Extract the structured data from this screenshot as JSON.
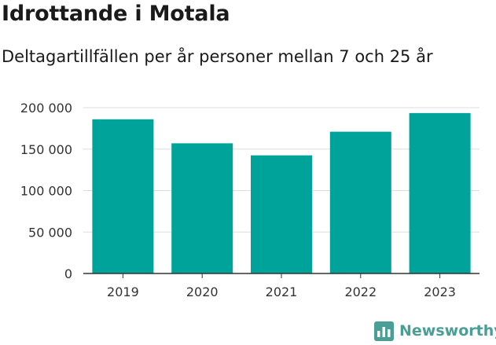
{
  "header": {
    "title": "Idrottande i Motala",
    "subtitle": "Deltagartillfällen per år personer mellan 7 och 25 år"
  },
  "brand": {
    "name": "Newsworthy"
  },
  "chart_data": {
    "type": "bar",
    "categories": [
      "2019",
      "2020",
      "2021",
      "2022",
      "2023"
    ],
    "values": [
      186000,
      157000,
      142500,
      171000,
      193500
    ],
    "ylim": [
      0,
      200000
    ],
    "yticks": [
      0,
      50000,
      100000,
      150000,
      200000
    ],
    "ytick_labels": [
      "0",
      "50 000",
      "100 000",
      "150 000",
      "200 000"
    ],
    "grid": true,
    "legend": "none",
    "colors": {
      "bar": "#00a39a",
      "grid": "#dddddd",
      "axis": "#333333",
      "tick_text": "#333333",
      "brand": "#4a9e96"
    }
  }
}
